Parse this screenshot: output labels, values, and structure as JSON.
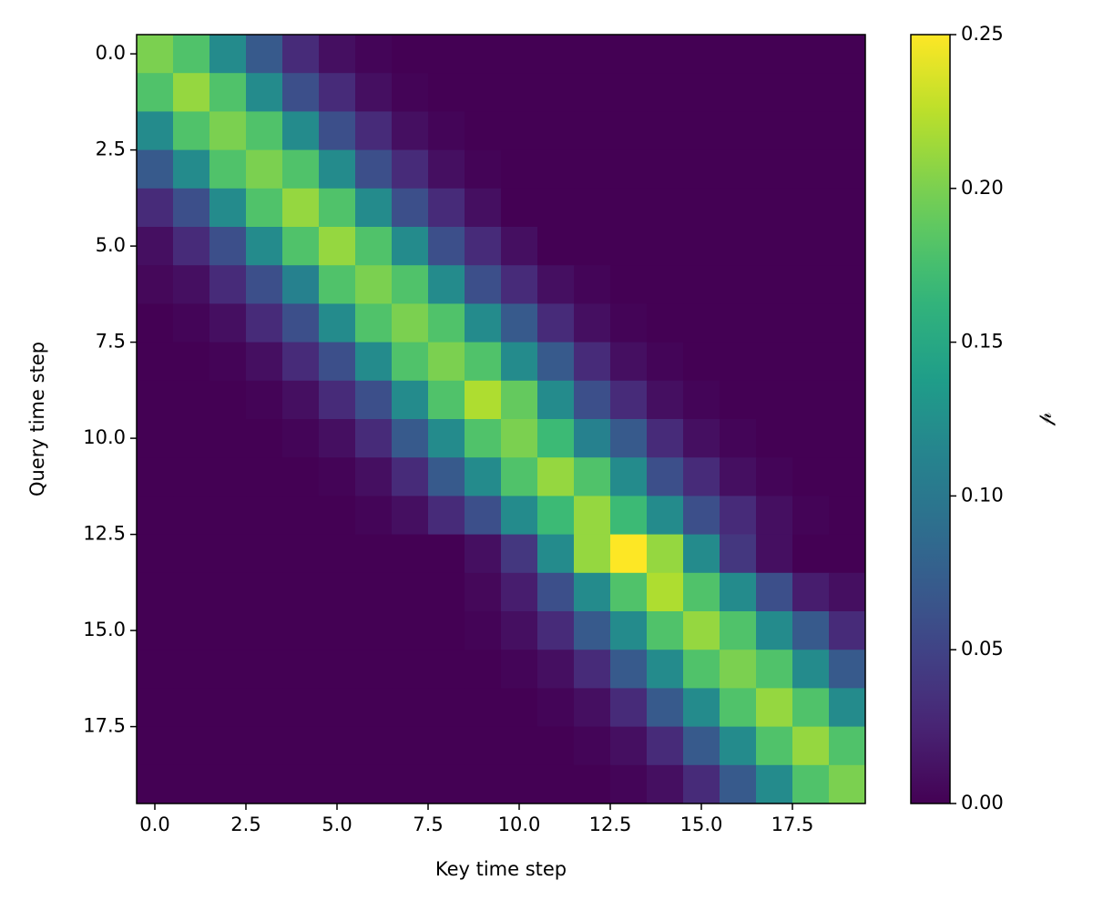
{
  "chart_data": {
    "type": "heatmap",
    "colormap": "viridis",
    "xlabel": "Key time step",
    "ylabel": "Query time step",
    "colorbar_label": "𝓅",
    "x": [
      0,
      1,
      2,
      3,
      4,
      5,
      6,
      7,
      8,
      9,
      10,
      11,
      12,
      13,
      14,
      15,
      16,
      17,
      18,
      19
    ],
    "y": [
      0,
      1,
      2,
      3,
      4,
      5,
      6,
      7,
      8,
      9,
      10,
      11,
      12,
      13,
      14,
      15,
      16,
      17,
      18,
      19
    ],
    "xlim": [
      -0.5,
      19.5
    ],
    "ylim": [
      19.5,
      -0.5
    ],
    "xticks": [
      {
        "value": 0,
        "label": "0.0"
      },
      2.5,
      {
        "value": 5,
        "label": "5.0"
      },
      7.5,
      {
        "value": 10,
        "label": "10.0"
      },
      12.5,
      {
        "value": 15,
        "label": "15.0"
      },
      17.5
    ],
    "yticks": [
      {
        "value": 0,
        "label": "0.0"
      },
      2.5,
      {
        "value": 5,
        "label": "5.0"
      },
      7.5,
      {
        "value": 10,
        "label": "10.0"
      },
      12.5,
      {
        "value": 15,
        "label": "15.0"
      },
      17.5
    ],
    "clim": [
      0,
      0.25
    ],
    "cticks": [
      {
        "value": 0,
        "label": "0.00"
      },
      {
        "value": 0.05,
        "label": "0.05"
      },
      {
        "value": 0.1,
        "label": "0.10"
      },
      {
        "value": 0.15,
        "label": "0.15"
      },
      {
        "value": 0.2,
        "label": "0.20"
      },
      {
        "value": 0.25,
        "label": "0.25"
      }
    ],
    "z": [
      [
        0.2,
        0.18,
        0.12,
        0.07,
        0.03,
        0.01,
        0.003,
        0,
        0,
        0,
        0,
        0,
        0,
        0,
        0,
        0,
        0,
        0,
        0,
        0
      ],
      [
        0.18,
        0.21,
        0.18,
        0.12,
        0.06,
        0.03,
        0.01,
        0.002,
        0,
        0,
        0,
        0,
        0,
        0,
        0,
        0,
        0,
        0,
        0,
        0
      ],
      [
        0.12,
        0.18,
        0.2,
        0.18,
        0.12,
        0.06,
        0.03,
        0.01,
        0.003,
        0,
        0,
        0,
        0,
        0,
        0,
        0,
        0,
        0,
        0,
        0
      ],
      [
        0.07,
        0.12,
        0.18,
        0.2,
        0.18,
        0.12,
        0.06,
        0.03,
        0.01,
        0.002,
        0,
        0,
        0,
        0,
        0,
        0,
        0,
        0,
        0,
        0
      ],
      [
        0.03,
        0.06,
        0.12,
        0.18,
        0.21,
        0.18,
        0.12,
        0.06,
        0.03,
        0.01,
        0,
        0,
        0,
        0,
        0,
        0,
        0,
        0,
        0,
        0
      ],
      [
        0.01,
        0.03,
        0.06,
        0.12,
        0.18,
        0.21,
        0.18,
        0.12,
        0.06,
        0.03,
        0.01,
        0,
        0,
        0,
        0,
        0,
        0,
        0,
        0,
        0
      ],
      [
        0.005,
        0.01,
        0.03,
        0.06,
        0.11,
        0.18,
        0.2,
        0.18,
        0.12,
        0.06,
        0.03,
        0.01,
        0.003,
        0,
        0,
        0,
        0,
        0,
        0,
        0
      ],
      [
        0,
        0.003,
        0.01,
        0.03,
        0.06,
        0.12,
        0.18,
        0.2,
        0.18,
        0.12,
        0.07,
        0.03,
        0.01,
        0.002,
        0,
        0,
        0,
        0,
        0,
        0
      ],
      [
        0,
        0,
        0.002,
        0.01,
        0.03,
        0.06,
        0.12,
        0.18,
        0.2,
        0.18,
        0.12,
        0.07,
        0.03,
        0.01,
        0.003,
        0,
        0,
        0,
        0,
        0
      ],
      [
        0,
        0,
        0,
        0.002,
        0.01,
        0.03,
        0.06,
        0.12,
        0.18,
        0.22,
        0.19,
        0.12,
        0.06,
        0.03,
        0.01,
        0.003,
        0,
        0,
        0,
        0
      ],
      [
        0,
        0,
        0,
        0,
        0.003,
        0.01,
        0.03,
        0.07,
        0.12,
        0.18,
        0.2,
        0.17,
        0.11,
        0.07,
        0.03,
        0.01,
        0.003,
        0,
        0,
        0
      ],
      [
        0,
        0,
        0,
        0,
        0,
        0.002,
        0.01,
        0.03,
        0.07,
        0.12,
        0.18,
        0.21,
        0.18,
        0.12,
        0.06,
        0.03,
        0.01,
        0.003,
        0,
        0
      ],
      [
        0,
        0,
        0,
        0,
        0,
        0,
        0.003,
        0.01,
        0.03,
        0.06,
        0.12,
        0.17,
        0.21,
        0.17,
        0.12,
        0.06,
        0.03,
        0.01,
        0.002,
        0
      ],
      [
        0,
        0,
        0,
        0,
        0,
        0,
        0,
        0,
        0,
        0.01,
        0.04,
        0.12,
        0.21,
        0.25,
        0.21,
        0.12,
        0.04,
        0.01,
        0,
        0
      ],
      [
        0,
        0,
        0,
        0,
        0,
        0,
        0,
        0,
        0,
        0.005,
        0.02,
        0.06,
        0.12,
        0.18,
        0.22,
        0.18,
        0.12,
        0.06,
        0.02,
        0.01
      ],
      [
        0,
        0,
        0,
        0,
        0,
        0,
        0,
        0,
        0,
        0.002,
        0.01,
        0.03,
        0.07,
        0.12,
        0.18,
        0.21,
        0.18,
        0.12,
        0.07,
        0.03
      ],
      [
        0,
        0,
        0,
        0,
        0,
        0,
        0,
        0,
        0,
        0,
        0.003,
        0.01,
        0.03,
        0.07,
        0.12,
        0.18,
        0.2,
        0.18,
        0.12,
        0.07
      ],
      [
        0,
        0,
        0,
        0,
        0,
        0,
        0,
        0,
        0,
        0,
        0,
        0.003,
        0.01,
        0.03,
        0.07,
        0.12,
        0.18,
        0.21,
        0.18,
        0.12
      ],
      [
        0,
        0,
        0,
        0,
        0,
        0,
        0,
        0,
        0,
        0,
        0,
        0,
        0.003,
        0.01,
        0.03,
        0.07,
        0.12,
        0.18,
        0.21,
        0.18
      ],
      [
        0,
        0,
        0,
        0,
        0,
        0,
        0,
        0,
        0,
        0,
        0,
        0,
        0,
        0.003,
        0.01,
        0.03,
        0.07,
        0.12,
        0.18,
        0.2
      ]
    ]
  }
}
